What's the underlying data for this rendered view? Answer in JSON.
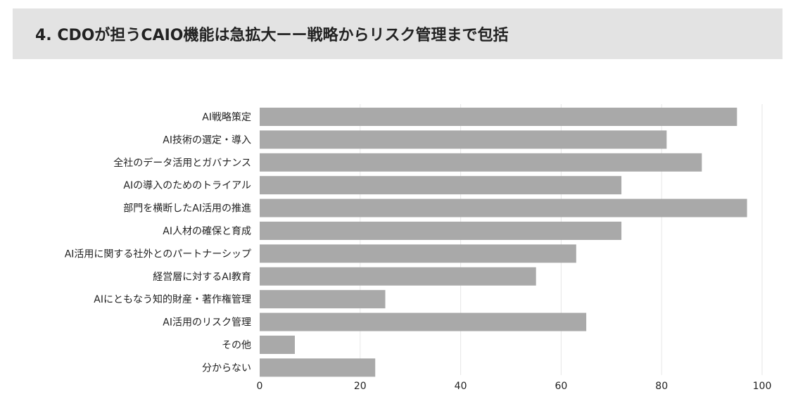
{
  "header": {
    "title": "4. CDOが担うCAIO機能は急拡大ーー戦略からリスク管理まで包括"
  },
  "colors": {
    "header_bg": "#e3e3e3",
    "bar": "#a9a9a9",
    "grid": "#e6e6e6",
    "text": "#222222"
  },
  "chart_data": {
    "type": "bar",
    "orientation": "horizontal",
    "categories": [
      "AI戦略策定",
      "AI技術の選定・導入",
      "全社のデータ活用とガバナンス",
      "AIの導入のためのトライアル",
      "部門を横断したAI活用の推進",
      "AI人材の確保と育成",
      "AI活用に関する社外とのパートナーシップ",
      "経営層に対するAI教育",
      "AIにともなう知的財産・著作権管理",
      "AI活用のリスク管理",
      "その他",
      "分からない"
    ],
    "values": [
      95,
      81,
      88,
      72,
      97,
      72,
      63,
      55,
      25,
      65,
      7,
      23
    ],
    "xlim": [
      0,
      100
    ],
    "xticks": [
      "0",
      "20",
      "40",
      "60",
      "80",
      "100"
    ],
    "xtick_values": [
      0,
      20,
      40,
      60,
      80,
      100
    ],
    "grid": true,
    "legend": "none"
  }
}
